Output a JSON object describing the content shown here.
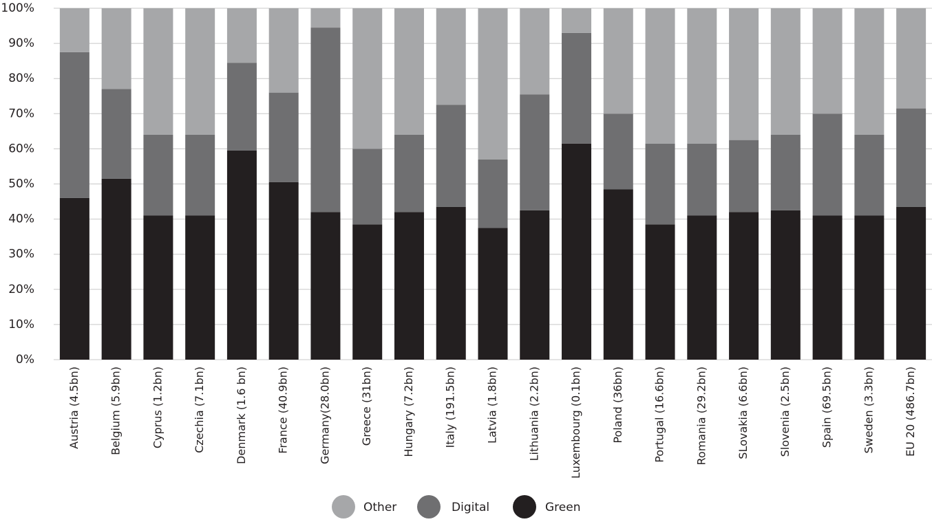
{
  "chart_data": {
    "type": "bar",
    "stacked": true,
    "title": "",
    "xlabel": "",
    "ylabel": "",
    "ylim": [
      0,
      100
    ],
    "yticks": [
      "0%",
      "10%",
      "20%",
      "30%",
      "40%",
      "50%",
      "60%",
      "70%",
      "80%",
      "90%",
      "100%"
    ],
    "grid": true,
    "legend_position": "bottom",
    "categories": [
      "Austria (4.5bn)",
      "Belgium (5.9bn)",
      "Cyprus (1.2bn)",
      "Czechia (7.1bn)",
      "Denmark (1.6 bn)",
      "France (40.9bn)",
      "Germany(28.0bn)",
      "Greece (31bn)",
      "Hungary (7.2bn)",
      "Italy (191.5bn)",
      "Latvia (1.8bn)",
      "Lithuania (2.2bn)",
      "Luxembourg (0.1bn)",
      "Poland (36bn)",
      "Portugal (16.6bn)",
      "Romania (29.2bn)",
      "SLovakia (6.6bn)",
      "Slovenia (2.5bn)",
      "Spain (69.5bn)",
      "Sweden (3.3bn)",
      "EU 20 (486.7bn)"
    ],
    "series": [
      {
        "name": "Green",
        "color": "#231f20",
        "values": [
          46,
          51.5,
          41,
          41,
          59.5,
          50.5,
          42,
          38.5,
          42,
          43.5,
          37.5,
          42.5,
          61.5,
          48.5,
          38.5,
          41,
          42,
          42.5,
          41,
          41,
          43.5
        ]
      },
      {
        "name": "Digital",
        "color": "#6f6f71",
        "values": [
          41.5,
          25.5,
          23,
          23,
          25,
          25.5,
          52.5,
          21.5,
          22,
          29,
          19.5,
          33,
          31.5,
          21.5,
          23,
          20.5,
          20.5,
          21.5,
          29,
          23,
          28
        ]
      },
      {
        "name": "Other",
        "color": "#a6a7a9",
        "values": [
          12.5,
          23,
          36,
          36,
          15.5,
          24,
          5.5,
          40,
          36,
          27.5,
          43,
          24.5,
          7,
          30,
          38.5,
          38.5,
          37.5,
          36,
          30,
          36,
          28.5
        ]
      }
    ],
    "legend": [
      {
        "label": "Other",
        "color": "#a6a7a9"
      },
      {
        "label": "Digital",
        "color": "#6f6f71"
      },
      {
        "label": "Green",
        "color": "#231f20"
      }
    ]
  }
}
